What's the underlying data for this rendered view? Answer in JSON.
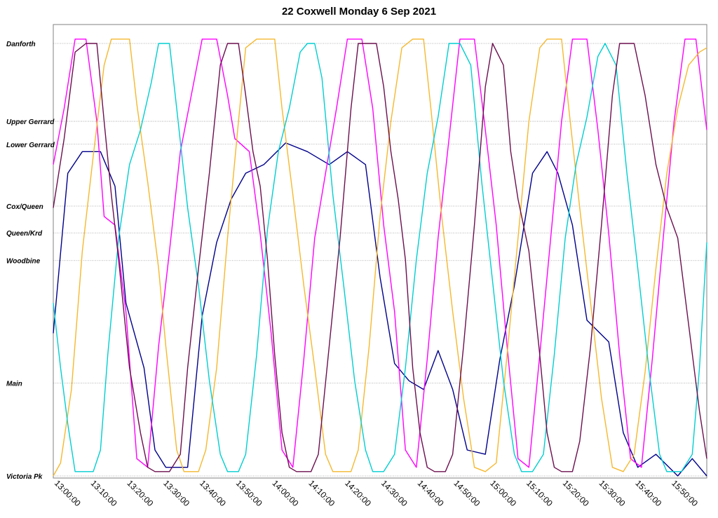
{
  "chart_data": {
    "type": "line",
    "title": "22 Coxwell Monday 6 Sep 2021",
    "xlabel": "",
    "ylabel": "",
    "x_unit": "time of day (minutes)",
    "x_range": [
      "13:00:00",
      "16:00:00"
    ],
    "x_ticks": [
      "13:00:00",
      "13:10:00",
      "13:20:00",
      "13:30:00",
      "13:40:00",
      "13:50:00",
      "14:00:00",
      "14:10:00",
      "14:20:00",
      "14:30:00",
      "14:40:00",
      "14:50:00",
      "15:00:00",
      "15:10:00",
      "15:20:00",
      "15:30:00",
      "15:40:00",
      "15:50:00"
    ],
    "y_unit": "stop position (Victoria Pk = 0, Danforth = 100)",
    "stops": [
      {
        "name": "Danforth",
        "pos": 100
      },
      {
        "name": "Upper Gerrard",
        "pos": 82
      },
      {
        "name": "Lower Gerrard",
        "pos": 76.7
      },
      {
        "name": "Cox/Queen",
        "pos": 62.4
      },
      {
        "name": "Queen/Krd",
        "pos": 56.2
      },
      {
        "name": "Woodbine",
        "pos": 49.8
      },
      {
        "name": "Main",
        "pos": 21.5
      },
      {
        "name": "Victoria Pk",
        "pos": 0
      }
    ],
    "grid": true,
    "legend": "none",
    "series": [
      {
        "color": "#00008B",
        "values": [
          [
            0,
            33
          ],
          [
            4,
            70
          ],
          [
            8,
            75
          ],
          [
            13,
            75
          ],
          [
            17,
            67
          ],
          [
            20,
            40
          ],
          [
            25,
            25
          ],
          [
            28,
            6
          ],
          [
            31,
            2
          ],
          [
            37,
            2
          ],
          [
            41,
            37
          ],
          [
            45,
            54
          ],
          [
            49,
            64
          ],
          [
            53,
            70
          ],
          [
            58,
            72
          ],
          [
            64,
            77
          ],
          [
            70,
            75
          ],
          [
            76,
            72
          ],
          [
            81,
            75
          ],
          [
            86,
            72
          ],
          [
            90,
            46
          ],
          [
            94,
            26
          ],
          [
            98,
            22
          ],
          [
            102,
            20
          ],
          [
            106,
            29
          ],
          [
            110,
            20
          ],
          [
            114,
            6
          ],
          [
            119,
            5
          ],
          [
            123,
            27
          ],
          [
            127,
            44
          ],
          [
            132,
            70
          ],
          [
            136,
            75
          ],
          [
            139,
            70
          ],
          [
            143,
            58
          ],
          [
            147,
            36
          ],
          [
            153,
            31
          ],
          [
            157,
            10
          ],
          [
            161,
            2
          ],
          [
            166,
            5
          ],
          [
            172,
            0
          ],
          [
            176,
            4
          ],
          [
            180,
            0
          ]
        ]
      },
      {
        "color": "#FF00FF",
        "values": [
          [
            0,
            72
          ],
          [
            3,
            85
          ],
          [
            6,
            101
          ],
          [
            9,
            101
          ],
          [
            12,
            82
          ],
          [
            14,
            60
          ],
          [
            17,
            58
          ],
          [
            20,
            38
          ],
          [
            23,
            4
          ],
          [
            26,
            2
          ],
          [
            29,
            30
          ],
          [
            32,
            52
          ],
          [
            35,
            75
          ],
          [
            38,
            88
          ],
          [
            41,
            101
          ],
          [
            45,
            101
          ],
          [
            48,
            88
          ],
          [
            50,
            78
          ],
          [
            54,
            75
          ],
          [
            57,
            56
          ],
          [
            60,
            33
          ],
          [
            63,
            6
          ],
          [
            66,
            2
          ],
          [
            69,
            27
          ],
          [
            72,
            55
          ],
          [
            75,
            70
          ],
          [
            78,
            85
          ],
          [
            81,
            101
          ],
          [
            85,
            101
          ],
          [
            88,
            85
          ],
          [
            91,
            58
          ],
          [
            94,
            38
          ],
          [
            97,
            6
          ],
          [
            100,
            2
          ],
          [
            103,
            27
          ],
          [
            106,
            55
          ],
          [
            109,
            78
          ],
          [
            112,
            101
          ],
          [
            116,
            101
          ],
          [
            119,
            80
          ],
          [
            122,
            58
          ],
          [
            125,
            30
          ],
          [
            128,
            4
          ],
          [
            131,
            2
          ],
          [
            134,
            28
          ],
          [
            137,
            55
          ],
          [
            140,
            82
          ],
          [
            143,
            101
          ],
          [
            147,
            101
          ],
          [
            150,
            80
          ],
          [
            153,
            56
          ],
          [
            156,
            28
          ],
          [
            159,
            4
          ],
          [
            162,
            2
          ],
          [
            165,
            27
          ],
          [
            168,
            55
          ],
          [
            171,
            82
          ],
          [
            174,
            101
          ],
          [
            177,
            101
          ],
          [
            180,
            80
          ]
        ]
      },
      {
        "color": "#F5B82E",
        "values": [
          [
            0,
            0
          ],
          [
            2,
            3
          ],
          [
            5,
            20
          ],
          [
            8,
            52
          ],
          [
            11,
            74
          ],
          [
            14,
            95
          ],
          [
            16,
            101
          ],
          [
            21,
            101
          ],
          [
            23,
            86
          ],
          [
            26,
            68
          ],
          [
            29,
            48
          ],
          [
            31,
            30
          ],
          [
            34,
            6
          ],
          [
            36,
            1
          ],
          [
            40,
            1
          ],
          [
            42,
            6
          ],
          [
            45,
            25
          ],
          [
            48,
            55
          ],
          [
            51,
            82
          ],
          [
            53,
            99
          ],
          [
            56,
            101
          ],
          [
            61,
            101
          ],
          [
            63,
            85
          ],
          [
            66,
            65
          ],
          [
            69,
            44
          ],
          [
            72,
            25
          ],
          [
            75,
            5
          ],
          [
            77,
            1
          ],
          [
            82,
            1
          ],
          [
            84,
            6
          ],
          [
            87,
            30
          ],
          [
            90,
            60
          ],
          [
            93,
            82
          ],
          [
            96,
            99
          ],
          [
            99,
            101
          ],
          [
            102,
            101
          ],
          [
            104,
            85
          ],
          [
            107,
            60
          ],
          [
            110,
            38
          ],
          [
            113,
            18
          ],
          [
            116,
            2
          ],
          [
            119,
            1
          ],
          [
            122,
            3
          ],
          [
            125,
            28
          ],
          [
            128,
            55
          ],
          [
            131,
            82
          ],
          [
            134,
            99
          ],
          [
            136,
            101
          ],
          [
            140,
            101
          ],
          [
            142,
            85
          ],
          [
            145,
            62
          ],
          [
            148,
            40
          ],
          [
            151,
            18
          ],
          [
            154,
            2
          ],
          [
            157,
            1
          ],
          [
            160,
            5
          ],
          [
            163,
            24
          ],
          [
            166,
            48
          ],
          [
            169,
            70
          ],
          [
            172,
            85
          ],
          [
            175,
            95
          ],
          [
            178,
            98
          ],
          [
            180,
            99
          ]
        ]
      },
      {
        "color": "#00CED1",
        "values": [
          [
            0,
            40
          ],
          [
            2,
            25
          ],
          [
            4,
            12
          ],
          [
            6,
            1
          ],
          [
            11,
            1
          ],
          [
            13,
            6
          ],
          [
            15,
            28
          ],
          [
            18,
            55
          ],
          [
            21,
            72
          ],
          [
            24,
            80
          ],
          [
            27,
            91
          ],
          [
            29,
            100
          ],
          [
            32,
            100
          ],
          [
            34,
            85
          ],
          [
            37,
            62
          ],
          [
            40,
            44
          ],
          [
            43,
            22
          ],
          [
            46,
            5
          ],
          [
            48,
            1
          ],
          [
            51,
            1
          ],
          [
            53,
            5
          ],
          [
            56,
            28
          ],
          [
            59,
            57
          ],
          [
            62,
            75
          ],
          [
            65,
            85
          ],
          [
            68,
            98
          ],
          [
            70,
            100
          ],
          [
            72,
            100
          ],
          [
            74,
            92
          ],
          [
            77,
            65
          ],
          [
            80,
            44
          ],
          [
            83,
            22
          ],
          [
            86,
            6
          ],
          [
            88,
            1
          ],
          [
            91,
            1
          ],
          [
            94,
            5
          ],
          [
            97,
            25
          ],
          [
            100,
            50
          ],
          [
            103,
            70
          ],
          [
            106,
            83
          ],
          [
            109,
            100
          ],
          [
            112,
            100
          ],
          [
            115,
            95
          ],
          [
            118,
            68
          ],
          [
            121,
            45
          ],
          [
            124,
            22
          ],
          [
            127,
            5
          ],
          [
            129,
            1
          ],
          [
            132,
            1
          ],
          [
            135,
            5
          ],
          [
            138,
            28
          ],
          [
            141,
            55
          ],
          [
            144,
            72
          ],
          [
            147,
            83
          ],
          [
            150,
            97
          ],
          [
            152,
            100
          ],
          [
            155,
            95
          ],
          [
            158,
            70
          ],
          [
            161,
            48
          ],
          [
            164,
            25
          ],
          [
            167,
            5
          ],
          [
            169,
            1
          ],
          [
            173,
            1
          ],
          [
            176,
            5
          ],
          [
            178,
            25
          ],
          [
            180,
            54
          ]
        ]
      },
      {
        "color": "#6B0F4F",
        "values": [
          [
            0,
            62
          ],
          [
            3,
            78
          ],
          [
            6,
            98
          ],
          [
            9,
            100
          ],
          [
            12,
            100
          ],
          [
            14,
            82
          ],
          [
            16,
            65
          ],
          [
            18,
            50
          ],
          [
            21,
            25
          ],
          [
            24,
            10
          ],
          [
            26,
            2
          ],
          [
            28,
            1
          ],
          [
            32,
            1
          ],
          [
            35,
            5
          ],
          [
            37,
            25
          ],
          [
            40,
            48
          ],
          [
            43,
            70
          ],
          [
            46,
            95
          ],
          [
            48,
            100
          ],
          [
            51,
            100
          ],
          [
            53,
            88
          ],
          [
            55,
            75
          ],
          [
            57,
            67
          ],
          [
            59,
            50
          ],
          [
            61,
            28
          ],
          [
            63,
            10
          ],
          [
            65,
            2
          ],
          [
            67,
            1
          ],
          [
            71,
            1
          ],
          [
            73,
            5
          ],
          [
            76,
            30
          ],
          [
            79,
            55
          ],
          [
            82,
            85
          ],
          [
            84,
            100
          ],
          [
            89,
            100
          ],
          [
            91,
            90
          ],
          [
            93,
            75
          ],
          [
            95,
            64
          ],
          [
            97,
            50
          ],
          [
            99,
            25
          ],
          [
            101,
            10
          ],
          [
            103,
            2
          ],
          [
            105,
            1
          ],
          [
            108,
            1
          ],
          [
            110,
            5
          ],
          [
            113,
            30
          ],
          [
            116,
            58
          ],
          [
            119,
            90
          ],
          [
            121,
            100
          ],
          [
            124,
            95
          ],
          [
            126,
            75
          ],
          [
            128,
            64
          ],
          [
            131,
            52
          ],
          [
            134,
            28
          ],
          [
            136,
            10
          ],
          [
            138,
            2
          ],
          [
            140,
            1
          ],
          [
            143,
            1
          ],
          [
            145,
            8
          ],
          [
            148,
            30
          ],
          [
            151,
            58
          ],
          [
            154,
            88
          ],
          [
            156,
            100
          ],
          [
            160,
            100
          ],
          [
            163,
            88
          ],
          [
            166,
            72
          ],
          [
            169,
            62
          ],
          [
            172,
            55
          ],
          [
            175,
            35
          ],
          [
            178,
            15
          ],
          [
            180,
            4
          ]
        ]
      }
    ]
  }
}
